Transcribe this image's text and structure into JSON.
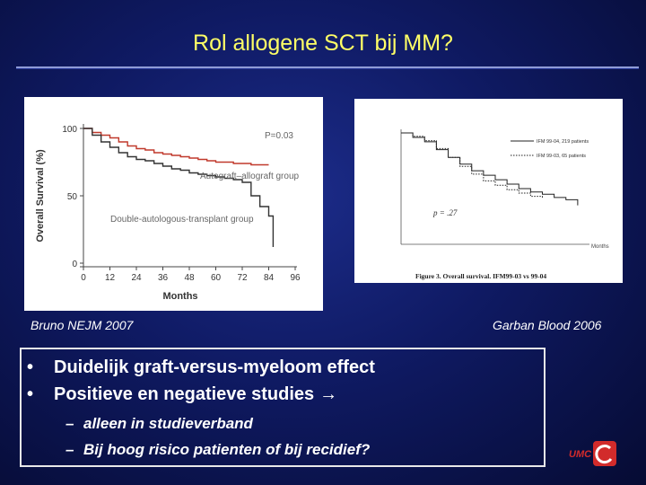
{
  "slide": {
    "title": "Rol allogene SCT bij MM?"
  },
  "figure_left": {
    "chart_data": {
      "type": "line",
      "ylabel": "Overall Survival (%)",
      "xlabel": "Months",
      "x_ticks": [
        0,
        12,
        24,
        36,
        48,
        60,
        72,
        84,
        96
      ],
      "y_ticks": [
        0,
        50,
        100
      ],
      "xlim": [
        0,
        96
      ],
      "ylim": [
        0,
        100
      ],
      "grid": false,
      "annotation": "P=0.03",
      "series": [
        {
          "name": "Autograft–allograft group",
          "color": "#c0392b",
          "x": [
            0,
            4,
            8,
            12,
            16,
            20,
            24,
            28,
            32,
            36,
            40,
            44,
            48,
            52,
            56,
            60,
            64,
            68,
            72,
            76,
            80,
            84
          ],
          "y": [
            100,
            97,
            95,
            93,
            90,
            87,
            85,
            84,
            82,
            81,
            80,
            79,
            78,
            77,
            76,
            75,
            75,
            74,
            74,
            73,
            73,
            73
          ]
        },
        {
          "name": "Double-autologous-transplant group",
          "color": "#333333",
          "x": [
            0,
            4,
            8,
            12,
            16,
            20,
            24,
            28,
            32,
            36,
            40,
            44,
            48,
            52,
            56,
            60,
            64,
            68,
            72,
            76,
            80,
            84,
            86
          ],
          "y": [
            100,
            95,
            90,
            86,
            82,
            79,
            77,
            76,
            74,
            72,
            70,
            69,
            67,
            66,
            65,
            64,
            63,
            62,
            60,
            50,
            42,
            35,
            12
          ]
        }
      ]
    }
  },
  "figure_right": {
    "chart_data": {
      "type": "line",
      "xlabel": "Months",
      "annotation": "p = .27",
      "caption": "Figure 3. Overall survival. IFM99-03 vs 99-04",
      "series": [
        {
          "name": "IFM 99-04, 219 patients",
          "style": "solid",
          "x": [
            0,
            5,
            10,
            15,
            20,
            25,
            30,
            35,
            40,
            45,
            50,
            55,
            60,
            65,
            70,
            75
          ],
          "y": [
            100,
            96,
            92,
            85,
            78,
            72,
            66,
            62,
            58,
            54,
            50,
            47,
            45,
            42,
            40,
            35
          ]
        },
        {
          "name": "IFM 99-03, 65 patients",
          "style": "dotted",
          "x": [
            0,
            5,
            10,
            15,
            20,
            25,
            30,
            35,
            40,
            45,
            50,
            55,
            60
          ],
          "y": [
            100,
            97,
            93,
            86,
            78,
            70,
            63,
            57,
            53,
            49,
            46,
            43,
            41
          ]
        }
      ]
    }
  },
  "citations": {
    "left": "Bruno NEJM  2007",
    "right": "Garban Blood 2006"
  },
  "bullets": [
    {
      "text": "Duidelijk graft-versus-myeloom effect"
    },
    {
      "text": "Positieve en negatieve studies",
      "arrow": "→"
    }
  ],
  "sub_bullets": [
    {
      "dash": "–",
      "text": "alleen in studieverband"
    },
    {
      "dash": "–",
      "text": "Bij hoog risico patienten of bij recidief?"
    }
  ],
  "logo": {
    "text": "UMC",
    "color": "#d22b2b"
  },
  "colors": {
    "title": "#ffff66",
    "background": "#0f1a63"
  }
}
